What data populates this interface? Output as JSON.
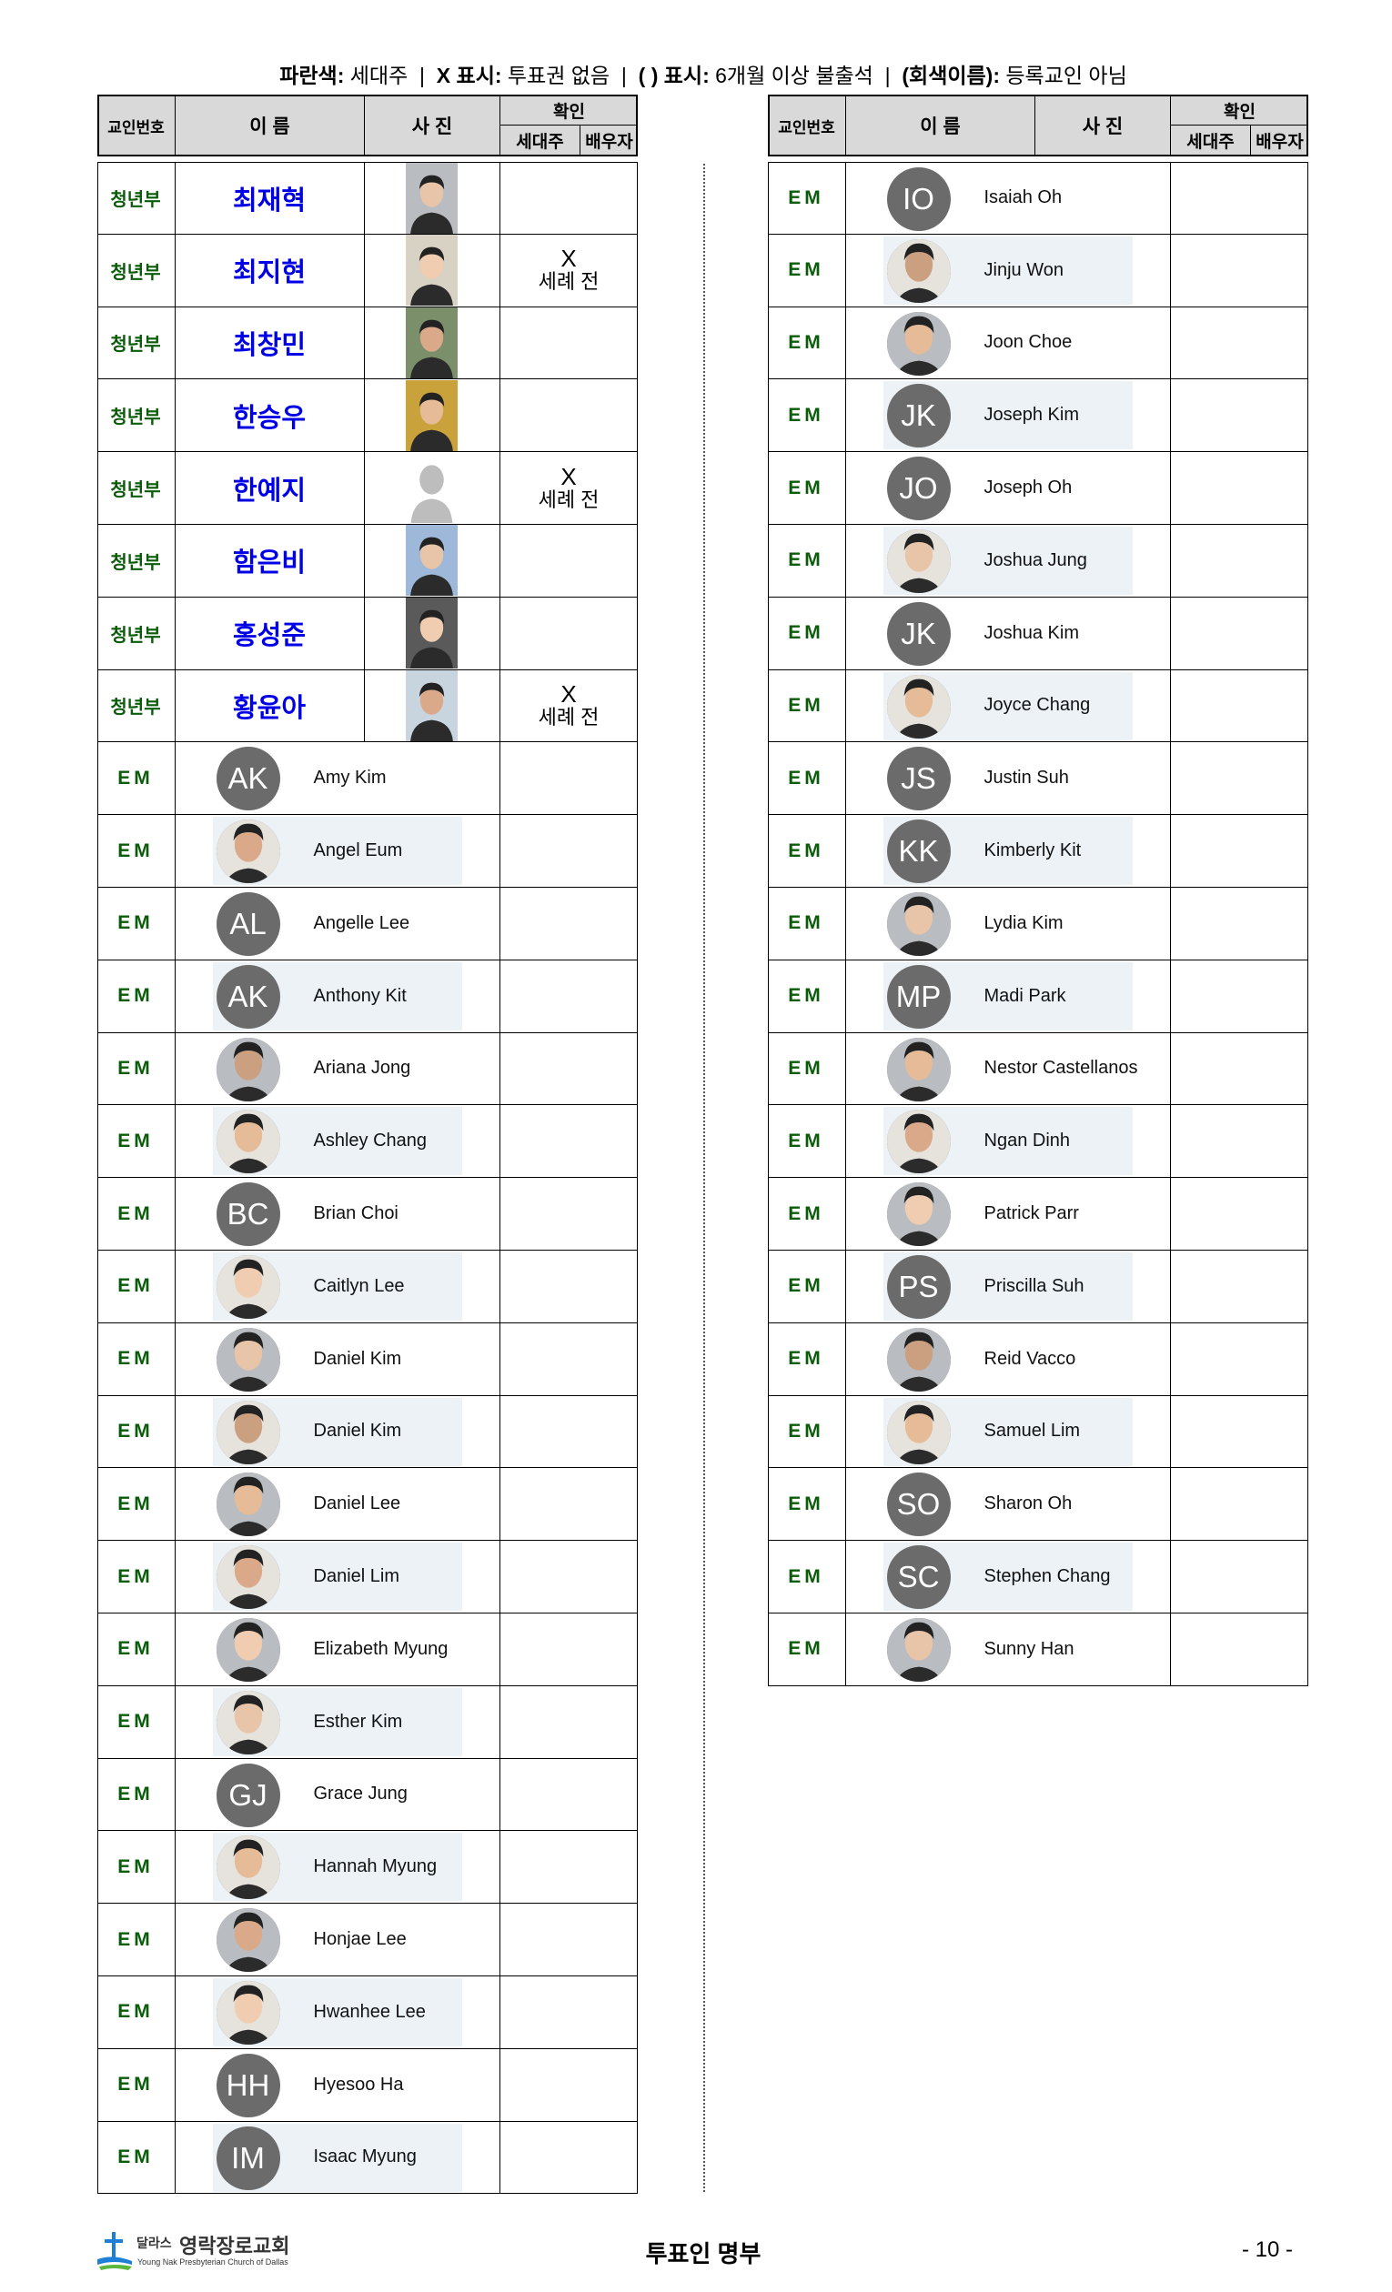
{
  "legend": {
    "blue_label": "파란색:",
    "blue_text": "세대주",
    "x_label": "X 표시:",
    "x_text": "투표권 없음",
    "paren_label": "( ) 표시:",
    "paren_text": "6개월 이상 불출석",
    "gray_label": "(회색이름):",
    "gray_text": "등록교인 아님",
    "separator": "|"
  },
  "header": {
    "member_no": "교인번호",
    "name": "이 름",
    "photo": "사 진",
    "confirm": "확인",
    "head": "세대주",
    "spouse": "배우자"
  },
  "colors": {
    "dept": "#0a5c0a",
    "head_of_household_name": "#0000e6",
    "avatar_bg": "#6b6b6b",
    "alt_band": "#edf2f7",
    "header_bg": "#d9d9d9"
  },
  "left_korean": [
    {
      "dept": "청년부",
      "name": "최재혁",
      "photo": "portrait",
      "mark": "",
      "note": ""
    },
    {
      "dept": "청년부",
      "name": "최지현",
      "photo": "portrait",
      "mark": "X",
      "note": "세례 전"
    },
    {
      "dept": "청년부",
      "name": "최창민",
      "photo": "portrait",
      "mark": "",
      "note": ""
    },
    {
      "dept": "청년부",
      "name": "한승우",
      "photo": "portrait",
      "mark": "",
      "note": ""
    },
    {
      "dept": "청년부",
      "name": "한예지",
      "photo": "silhouette",
      "mark": "X",
      "note": "세례 전"
    },
    {
      "dept": "청년부",
      "name": "함은비",
      "photo": "portrait",
      "mark": "",
      "note": ""
    },
    {
      "dept": "청년부",
      "name": "홍성준",
      "photo": "portrait",
      "mark": "",
      "note": ""
    },
    {
      "dept": "청년부",
      "name": "황윤아",
      "photo": "portrait",
      "mark": "X",
      "note": "세례 전"
    }
  ],
  "left_em": [
    {
      "dept": "EM",
      "name": "Amy Kim",
      "initials": "AK"
    },
    {
      "dept": "EM",
      "name": "Angel Eum",
      "initials": ""
    },
    {
      "dept": "EM",
      "name": "Angelle Lee",
      "initials": "AL"
    },
    {
      "dept": "EM",
      "name": "Anthony Kit",
      "initials": "AK"
    },
    {
      "dept": "EM",
      "name": "Ariana Jong",
      "initials": ""
    },
    {
      "dept": "EM",
      "name": "Ashley Chang",
      "initials": ""
    },
    {
      "dept": "EM",
      "name": "Brian Choi",
      "initials": "BC"
    },
    {
      "dept": "EM",
      "name": "Caitlyn Lee",
      "initials": ""
    },
    {
      "dept": "EM",
      "name": "Daniel Kim",
      "initials": ""
    },
    {
      "dept": "EM",
      "name": "Daniel Kim",
      "initials": ""
    },
    {
      "dept": "EM",
      "name": "Daniel Lee",
      "initials": ""
    },
    {
      "dept": "EM",
      "name": "Daniel Lim",
      "initials": ""
    },
    {
      "dept": "EM",
      "name": "Elizabeth Myung",
      "initials": ""
    },
    {
      "dept": "EM",
      "name": "Esther Kim",
      "initials": ""
    },
    {
      "dept": "EM",
      "name": "Grace Jung",
      "initials": "GJ"
    },
    {
      "dept": "EM",
      "name": "Hannah Myung",
      "initials": ""
    },
    {
      "dept": "EM",
      "name": "Honjae Lee",
      "initials": ""
    },
    {
      "dept": "EM",
      "name": "Hwanhee Lee",
      "initials": ""
    },
    {
      "dept": "EM",
      "name": "Hyesoo Ha",
      "initials": "HH"
    },
    {
      "dept": "EM",
      "name": "Isaac Myung",
      "initials": "IM"
    }
  ],
  "right_em": [
    {
      "dept": "EM",
      "name": "Isaiah Oh",
      "initials": "IO"
    },
    {
      "dept": "EM",
      "name": "Jinju Won",
      "initials": ""
    },
    {
      "dept": "EM",
      "name": "Joon Choe",
      "initials": ""
    },
    {
      "dept": "EM",
      "name": "Joseph Kim",
      "initials": "JK"
    },
    {
      "dept": "EM",
      "name": "Joseph Oh",
      "initials": "JO"
    },
    {
      "dept": "EM",
      "name": "Joshua Jung",
      "initials": ""
    },
    {
      "dept": "EM",
      "name": "Joshua Kim",
      "initials": "JK"
    },
    {
      "dept": "EM",
      "name": "Joyce Chang",
      "initials": ""
    },
    {
      "dept": "EM",
      "name": "Justin Suh",
      "initials": "JS"
    },
    {
      "dept": "EM",
      "name": "Kimberly Kit",
      "initials": "KK"
    },
    {
      "dept": "EM",
      "name": "Lydia Kim",
      "initials": ""
    },
    {
      "dept": "EM",
      "name": "Madi Park",
      "initials": "MP"
    },
    {
      "dept": "EM",
      "name": "Nestor Castellanos",
      "initials": ""
    },
    {
      "dept": "EM",
      "name": "Ngan Dinh",
      "initials": ""
    },
    {
      "dept": "EM",
      "name": "Patrick Parr",
      "initials": ""
    },
    {
      "dept": "EM",
      "name": "Priscilla Suh",
      "initials": "PS"
    },
    {
      "dept": "EM",
      "name": "Reid Vacco",
      "initials": ""
    },
    {
      "dept": "EM",
      "name": "Samuel Lim",
      "initials": ""
    },
    {
      "dept": "EM",
      "name": "Sharon Oh",
      "initials": "SO"
    },
    {
      "dept": "EM",
      "name": "Stephen Chang",
      "initials": "SC"
    },
    {
      "dept": "EM",
      "name": "Sunny Han",
      "initials": ""
    }
  ],
  "footer": {
    "logo_korean_small": "달라스",
    "logo_korean": "영락장로교회",
    "logo_english": "Young Nak Presbyterian Church of Dallas",
    "title": "투표인 명부",
    "page": "- 10 -"
  }
}
